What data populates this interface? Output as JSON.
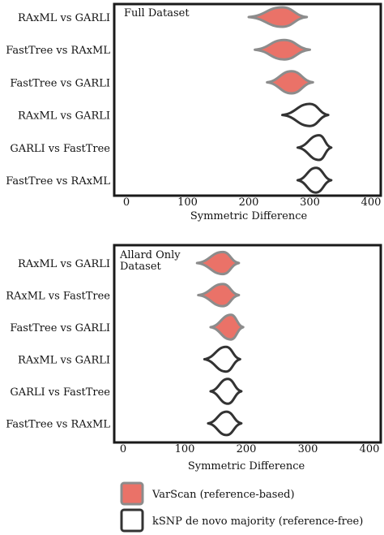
{
  "chart_data": [
    {
      "type": "violin",
      "title": "Full Dataset",
      "xlabel": "Symmetric Difference",
      "xlim": [
        -5,
        420
      ],
      "xticks": [
        0,
        100,
        200,
        300,
        400
      ],
      "xtick_labels": [
        "0",
        "100",
        "200",
        "300",
        "400"
      ],
      "legend": "none",
      "grid": false,
      "categories": [
        "RAxML vs GARLI",
        "FastTree vs RAxML",
        "FastTree vs GARLI",
        "RAxML vs GARLI",
        "GARLI vs FastTree",
        "FastTree vs RAxML"
      ],
      "series": [
        {
          "method": "varscan",
          "values": [
            {
              "min": 200,
              "mode": 255,
              "max": 295,
              "halfwidth": 0.3
            },
            {
              "min": 210,
              "mode": 258,
              "max": 300,
              "halfwidth": 0.3
            },
            {
              "min": 230,
              "mode": 270,
              "max": 305,
              "halfwidth": 0.34
            }
          ]
        },
        {
          "method": "ksnp",
          "values": [
            {
              "min": 255,
              "mode": 300,
              "max": 330,
              "halfwidth": 0.34
            },
            {
              "min": 280,
              "mode": 315,
              "max": 335,
              "halfwidth": 0.38
            },
            {
              "min": 280,
              "mode": 310,
              "max": 335,
              "halfwidth": 0.38
            }
          ]
        }
      ]
    },
    {
      "type": "violin",
      "title": "Allard  Only\nDataset",
      "xlabel": "Symmetric Difference",
      "xlim": [
        -5,
        420
      ],
      "xticks": [
        0,
        100,
        200,
        300,
        400
      ],
      "xtick_labels": [
        "0",
        "100",
        "200",
        "300",
        "400"
      ],
      "legend": "none",
      "grid": false,
      "categories": [
        "RAxML vs GARLI",
        "RAxML vs FastTree",
        "FastTree vs GARLI",
        "RAxML vs GARLI",
        "GARLI vs FastTree",
        "FastTree vs RAxML"
      ],
      "series": [
        {
          "method": "varscan",
          "values": [
            {
              "min": 120,
              "mode": 162,
              "max": 188,
              "halfwidth": 0.34
            },
            {
              "min": 122,
              "mode": 162,
              "max": 188,
              "halfwidth": 0.34
            },
            {
              "min": 142,
              "mode": 175,
              "max": 195,
              "halfwidth": 0.38
            }
          ]
        },
        {
          "method": "ksnp",
          "values": [
            {
              "min": 132,
              "mode": 167,
              "max": 190,
              "halfwidth": 0.38
            },
            {
              "min": 142,
              "mode": 170,
              "max": 192,
              "halfwidth": 0.38
            },
            {
              "min": 138,
              "mode": 168,
              "max": 192,
              "halfwidth": 0.36
            }
          ]
        }
      ]
    }
  ],
  "legend": {
    "items": [
      {
        "key": "varscan",
        "label": "VarScan (reference-based)",
        "fill": "#ea7268",
        "stroke": "#8c8c8c"
      },
      {
        "key": "ksnp",
        "label": "kSNP de novo majority (reference-free)",
        "fill": "#ffffff",
        "stroke": "#333333"
      }
    ]
  }
}
